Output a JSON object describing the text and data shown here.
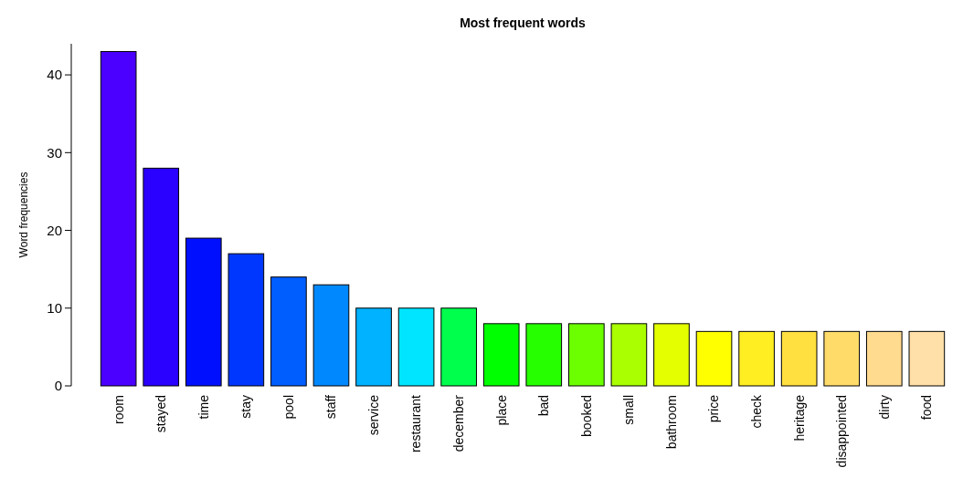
{
  "chart_data": {
    "type": "bar",
    "title": "Most frequent words",
    "ylabel": "Word frequencies",
    "categories": [
      "room",
      "stayed",
      "time",
      "stay",
      "pool",
      "staff",
      "service",
      "restaurant",
      "december",
      "place",
      "bad",
      "booked",
      "small",
      "bathroom",
      "price",
      "check",
      "heritage",
      "disappointed",
      "dirty",
      "food"
    ],
    "values": [
      43,
      28,
      19,
      17,
      14,
      13,
      10,
      10,
      10,
      8,
      8,
      8,
      8,
      8,
      7,
      7,
      7,
      7,
      7,
      7
    ],
    "colors": [
      "#4b00ff",
      "#2a00ff",
      "#0010ff",
      "#0037ff",
      "#005eff",
      "#0088ff",
      "#00b2ff",
      "#00e5ff",
      "#00ff4d",
      "#00ff00",
      "#26ff00",
      "#6cff00",
      "#aaff00",
      "#e3ff00",
      "#ffff00",
      "#ffee22",
      "#ffe040",
      "#ffdc6a",
      "#ffdb8f",
      "#ffe0a8"
    ],
    "ylim": [
      0,
      44
    ],
    "yticks": [
      0,
      10,
      20,
      30,
      40
    ],
    "grid": false
  }
}
